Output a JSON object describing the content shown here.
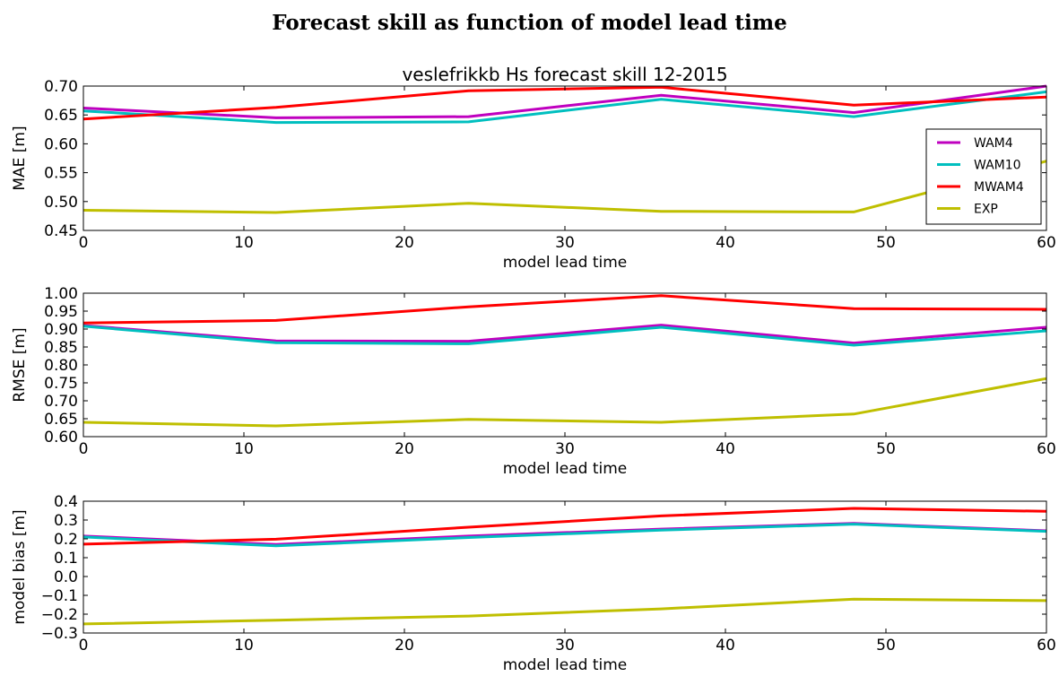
{
  "page_title": "Forecast skill as function of model lead time",
  "chart_data": [
    {
      "type": "line",
      "title": "veslefrikkb Hs forecast skill 12-2015",
      "xlabel": "model lead time",
      "ylabel": "MAE [m]",
      "xlim": [
        0,
        60
      ],
      "ylim": [
        0.45,
        0.7
      ],
      "xticks": [
        "0",
        "10",
        "20",
        "30",
        "40",
        "50",
        "60"
      ],
      "yticks": [
        "0.45",
        "0.50",
        "0.55",
        "0.60",
        "0.65",
        "0.70"
      ],
      "x": [
        0,
        12,
        24,
        36,
        48,
        60
      ],
      "legend_position": "right",
      "series": [
        {
          "name": "WAM4",
          "color": "#bf00bf",
          "values": [
            0.662,
            0.645,
            0.647,
            0.684,
            0.654,
            0.7
          ]
        },
        {
          "name": "WAM10",
          "color": "#00bfbf",
          "values": [
            0.657,
            0.637,
            0.638,
            0.677,
            0.647,
            0.69
          ]
        },
        {
          "name": "MWAM4",
          "color": "#ff0000",
          "values": [
            0.643,
            0.663,
            0.692,
            0.698,
            0.667,
            0.681
          ]
        },
        {
          "name": "EXP",
          "color": "#bfbf00",
          "values": [
            0.485,
            0.481,
            0.497,
            0.483,
            0.482,
            0.57
          ]
        }
      ]
    },
    {
      "type": "line",
      "title": "",
      "xlabel": "model lead time",
      "ylabel": "RMSE [m]",
      "xlim": [
        0,
        60
      ],
      "ylim": [
        0.6,
        1.0
      ],
      "xticks": [
        "0",
        "10",
        "20",
        "30",
        "40",
        "50",
        "60"
      ],
      "yticks": [
        "0.60",
        "0.65",
        "0.70",
        "0.75",
        "0.80",
        "0.85",
        "0.90",
        "0.95",
        "1.00"
      ],
      "x": [
        0,
        12,
        24,
        36,
        48,
        60
      ],
      "series": [
        {
          "color": "#bf00bf",
          "values": [
            0.91,
            0.867,
            0.866,
            0.911,
            0.861,
            0.905
          ]
        },
        {
          "color": "#00bfbf",
          "values": [
            0.908,
            0.862,
            0.859,
            0.905,
            0.855,
            0.895
          ]
        },
        {
          "color": "#ff0000",
          "values": [
            0.917,
            0.924,
            0.962,
            0.993,
            0.957,
            0.955
          ]
        },
        {
          "color": "#bfbf00",
          "values": [
            0.64,
            0.63,
            0.648,
            0.64,
            0.663,
            0.762
          ]
        }
      ]
    },
    {
      "type": "line",
      "title": "",
      "xlabel": "model lead time",
      "ylabel": "model bias [m]",
      "xlim": [
        0,
        60
      ],
      "ylim": [
        -0.3,
        0.4
      ],
      "xticks": [
        "0",
        "10",
        "20",
        "30",
        "40",
        "50",
        "60"
      ],
      "yticks": [
        "−0.3",
        "−0.2",
        "−0.1",
        "0.0",
        "0.1",
        "0.2",
        "0.3",
        "0.4"
      ],
      "x": [
        0,
        12,
        24,
        36,
        48,
        60
      ],
      "series": [
        {
          "color": "#bf00bf",
          "values": [
            0.215,
            0.17,
            0.215,
            0.252,
            0.282,
            0.243
          ]
        },
        {
          "color": "#00bfbf",
          "values": [
            0.21,
            0.163,
            0.207,
            0.246,
            0.278,
            0.24
          ]
        },
        {
          "color": "#ff0000",
          "values": [
            0.172,
            0.198,
            0.262,
            0.322,
            0.362,
            0.346
          ]
        },
        {
          "color": "#bfbf00",
          "values": [
            -0.252,
            -0.232,
            -0.21,
            -0.172,
            -0.12,
            -0.128
          ]
        }
      ]
    }
  ]
}
